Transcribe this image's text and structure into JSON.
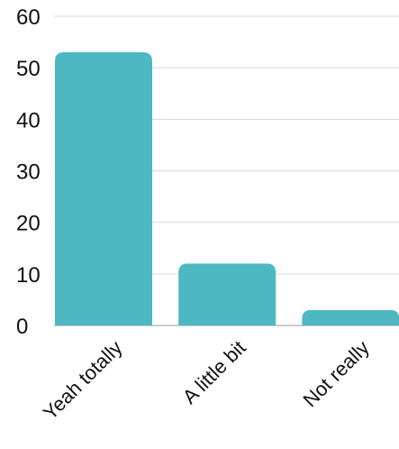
{
  "chart_data": {
    "type": "bar",
    "categories": [
      "Yeah totally",
      "A little bit",
      "Not really"
    ],
    "values": [
      53,
      12,
      3
    ],
    "yticks": [
      "0",
      "10",
      "20",
      "30",
      "40",
      "50",
      "60"
    ],
    "ylim": [
      0,
      60
    ],
    "grid": true,
    "legend": "none",
    "colors": {
      "bar": "#4db8c1",
      "grid": "#d9d9d9",
      "axis": "#bdbdbd",
      "text": "#111111"
    }
  }
}
